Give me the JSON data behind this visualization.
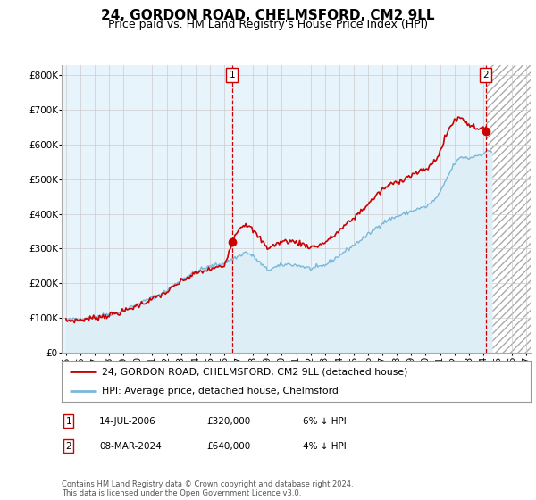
{
  "title": "24, GORDON ROAD, CHELMSFORD, CM2 9LL",
  "subtitle": "Price paid vs. HM Land Registry's House Price Index (HPI)",
  "ytick_values": [
    0,
    100000,
    200000,
    300000,
    400000,
    500000,
    600000,
    700000,
    800000
  ],
  "ylim": [
    0,
    830000
  ],
  "xlim_start": 1994.7,
  "xlim_end": 2027.3,
  "x_ticks": [
    1995,
    1996,
    1997,
    1998,
    1999,
    2000,
    2001,
    2002,
    2003,
    2004,
    2005,
    2006,
    2007,
    2008,
    2009,
    2010,
    2011,
    2012,
    2013,
    2014,
    2015,
    2016,
    2017,
    2018,
    2019,
    2020,
    2021,
    2022,
    2023,
    2024,
    2025,
    2026,
    2027
  ],
  "hpi_color": "#7ab8d9",
  "hpi_fill_color": "#ddeef7",
  "hpi_fill_alpha": 1.0,
  "price_color": "#cc0000",
  "vline_color": "#cc0000",
  "grid_color": "#cccccc",
  "plot_bg_color": "#e8f4fb",
  "hatch_bg_color": "#f0f0f0",
  "title_fontsize": 11,
  "subtitle_fontsize": 9,
  "tick_fontsize": 7.5,
  "legend_label_price": "24, GORDON ROAD, CHELMSFORD, CM2 9LL (detached house)",
  "legend_label_hpi": "HPI: Average price, detached house, Chelmsford",
  "table_row1": [
    "1",
    "14-JUL-2006",
    "£320,000",
    "6% ↓ HPI"
  ],
  "table_row2": [
    "2",
    "08-MAR-2024",
    "£640,000",
    "4% ↓ HPI"
  ],
  "footer": "Contains HM Land Registry data © Crown copyright and database right 2024.\nThis data is licensed under the Open Government Licence v3.0.",
  "bg_color": "#ffffff",
  "sale1_x": 2006.54,
  "sale1_y": 320000,
  "sale2_x": 2024.17,
  "sale2_y": 640000,
  "vline1_x": 2006.54,
  "vline2_x": 2024.17
}
